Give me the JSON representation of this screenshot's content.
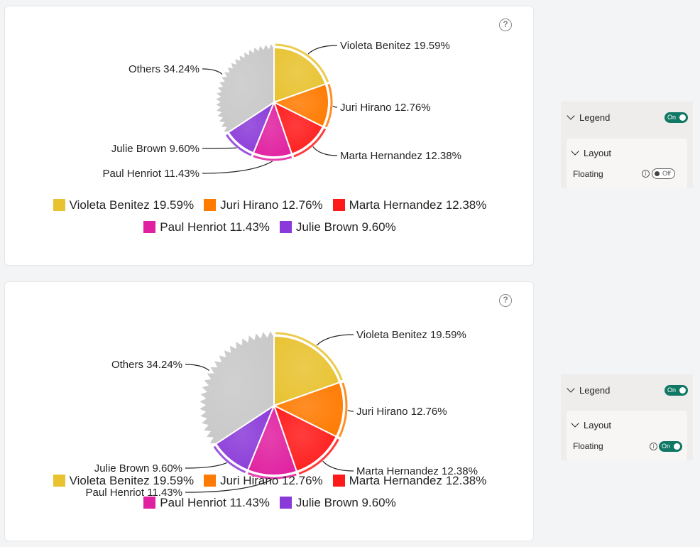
{
  "help_glyph": "?",
  "chart_data": [
    {
      "type": "pie",
      "categories": [
        "Violeta Benitez",
        "Juri Hirano",
        "Marta Hernandez",
        "Paul Henriot",
        "Julie Brown",
        "Others"
      ],
      "values": [
        19.59,
        12.76,
        12.38,
        11.43,
        9.6,
        34.24
      ],
      "slice_labels": [
        "Violeta Benitez 19.59%",
        "Juri Hirano 12.76%",
        "Marta Hernandez 12.38%",
        "Paul Henriot 11.43%",
        "Julie Brown 9.60%",
        "Others 34.24%"
      ],
      "colors": [
        "#e8c22f",
        "#ff7a00",
        "#ff1a1a",
        "#e020a0",
        "#8a3ad8",
        "#c8c8c8"
      ],
      "legend": [
        "Violeta Benitez 19.59%",
        "Juri Hirano 12.76%",
        "Marta Hernandez 12.38%",
        "Paul Henriot 11.43%",
        "Julie Brown 9.60%"
      ],
      "legend_placement": "bottom-center",
      "floating_legend": false
    },
    {
      "type": "pie",
      "categories": [
        "Violeta Benitez",
        "Juri Hirano",
        "Marta Hernandez",
        "Paul Henriot",
        "Julie Brown",
        "Others"
      ],
      "values": [
        19.59,
        12.76,
        12.38,
        11.43,
        9.6,
        34.24
      ],
      "slice_labels": [
        "Violeta Benitez 19.59%",
        "Juri Hirano 12.76%",
        "Marta Hernandez 12.38%",
        "Paul Henriot 11.43%",
        "Julie Brown 9.60%",
        "Others 34.24%"
      ],
      "colors": [
        "#e8c22f",
        "#ff7a00",
        "#ff1a1a",
        "#e020a0",
        "#8a3ad8",
        "#c8c8c8"
      ],
      "legend": [
        "Violeta Benitez 19.59%",
        "Juri Hirano 12.76%",
        "Marta Hernandez 12.38%",
        "Paul Henriot 11.43%",
        "Julie Brown 9.60%"
      ],
      "legend_placement": "bottom-center",
      "floating_legend": true
    }
  ],
  "panels": [
    {
      "legend_label": "Legend",
      "legend_toggle": "On",
      "layout_label": "Layout",
      "floating_label": "Floating",
      "floating_toggle": "Off"
    },
    {
      "legend_label": "Legend",
      "legend_toggle": "On",
      "layout_label": "Layout",
      "floating_label": "Floating",
      "floating_toggle": "On"
    }
  ],
  "info_glyph": "i"
}
